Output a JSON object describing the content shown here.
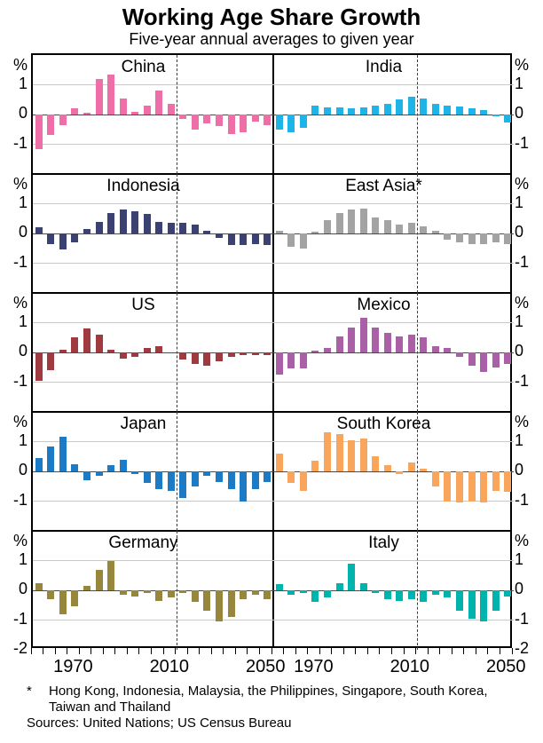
{
  "title": "Working Age Share Growth",
  "subtitle": "Five-year annual averages to given year",
  "footnote": {
    "marker": "*",
    "line1": "Hong Kong, Indonesia, Malaysia, the Philippines, Singapore, South Korea,",
    "line2": "Taiwan and Thailand",
    "sources": "Sources: United Nations; US Census Bureau"
  },
  "chart_data": {
    "type": "bar",
    "unit": "%",
    "title": "Working Age Share Growth",
    "subtitle": "Five-year annual averages to given year",
    "x": [
      1955,
      1960,
      1965,
      1970,
      1975,
      1980,
      1985,
      1990,
      1995,
      2000,
      2005,
      2010,
      2015,
      2020,
      2025,
      2030,
      2035,
      2040,
      2045,
      2050
    ],
    "x_tick_labels": [
      "1970",
      "2010",
      "2050"
    ],
    "x_label_years": [
      1970,
      2010,
      2050
    ],
    "ylim": [
      -2,
      2
    ],
    "y_tick_labels": [
      "%",
      "1",
      "0",
      "-1"
    ],
    "y_bottom_label": "-2",
    "grid": "horizontal gridlines at +1 and -1",
    "projection_divider_year": 2012.5,
    "layout": {
      "rows": 5,
      "cols": 2,
      "legend": "none"
    },
    "panels": [
      {
        "name": "China",
        "color": "#ee6fa8",
        "values": [
          -1.15,
          -0.7,
          -0.35,
          0.2,
          0.05,
          1.2,
          1.35,
          0.55,
          0.1,
          0.3,
          0.8,
          0.35,
          -0.15,
          -0.5,
          -0.3,
          -0.4,
          -0.65,
          -0.6,
          -0.25,
          -0.35
        ]
      },
      {
        "name": "India",
        "color": "#1fb4e8",
        "values": [
          -0.5,
          -0.6,
          -0.45,
          0.3,
          0.25,
          0.25,
          0.2,
          0.25,
          0.3,
          0.35,
          0.5,
          0.6,
          0.55,
          0.35,
          0.3,
          0.28,
          0.22,
          0.15,
          -0.05,
          -0.27
        ]
      },
      {
        "name": "Indonesia",
        "color": "#3b4170",
        "values": [
          0.2,
          -0.35,
          -0.55,
          -0.3,
          0.15,
          0.4,
          0.7,
          0.8,
          0.75,
          0.65,
          0.4,
          0.35,
          0.35,
          0.3,
          0.1,
          -0.15,
          -0.4,
          -0.4,
          -0.35,
          -0.4
        ]
      },
      {
        "name": "East Asia*",
        "color": "#a3a3a3",
        "values": [
          0.1,
          -0.45,
          -0.5,
          0.05,
          0.45,
          0.7,
          0.8,
          0.85,
          0.55,
          0.45,
          0.3,
          0.35,
          0.25,
          0.1,
          -0.2,
          -0.3,
          -0.35,
          -0.35,
          -0.3,
          -0.35
        ]
      },
      {
        "name": "US",
        "color": "#9e3a40",
        "values": [
          -0.95,
          -0.6,
          0.1,
          0.5,
          0.8,
          0.6,
          0.1,
          -0.2,
          -0.15,
          0.15,
          0.2,
          0,
          -0.25,
          -0.4,
          -0.45,
          -0.3,
          -0.15,
          -0.1,
          -0.1,
          -0.1
        ]
      },
      {
        "name": "Mexico",
        "color": "#aa60a7",
        "values": [
          -0.75,
          -0.55,
          -0.55,
          0.05,
          0.15,
          0.55,
          0.85,
          1.15,
          0.85,
          0.65,
          0.55,
          0.6,
          0.5,
          0.2,
          0.15,
          -0.15,
          -0.45,
          -0.65,
          -0.5,
          -0.4
        ]
      },
      {
        "name": "Japan",
        "color": "#1d7ac5",
        "values": [
          0.45,
          0.85,
          1.15,
          0.25,
          -0.3,
          -0.15,
          0.2,
          0.4,
          -0.1,
          -0.4,
          -0.6,
          -0.65,
          -0.9,
          -0.5,
          -0.15,
          -0.35,
          -0.6,
          -1.0,
          -0.6,
          -0.35
        ]
      },
      {
        "name": "South Korea",
        "color": "#f9a65c",
        "values": [
          0.6,
          -0.4,
          -0.65,
          0.35,
          1.3,
          1.25,
          1.05,
          1.1,
          0.5,
          0.2,
          -0.1,
          0.3,
          0.1,
          -0.5,
          -1.0,
          -1.05,
          -1.0,
          -1.05,
          -0.65,
          -0.7
        ]
      },
      {
        "name": "Germany",
        "color": "#97873c",
        "values": [
          0.25,
          -0.3,
          -0.8,
          -0.55,
          0.15,
          0.7,
          1.0,
          -0.15,
          -0.2,
          -0.1,
          -0.35,
          -0.25,
          -0.1,
          -0.4,
          -0.7,
          -1.05,
          -0.9,
          -0.3,
          -0.15,
          -0.3
        ]
      },
      {
        "name": "Italy",
        "color": "#00b3ad",
        "values": [
          0.2,
          -0.15,
          -0.1,
          -0.4,
          -0.25,
          0.25,
          0.9,
          0.25,
          -0.1,
          -0.3,
          -0.35,
          -0.3,
          -0.4,
          -0.15,
          -0.25,
          -0.7,
          -0.95,
          -1.05,
          -0.7,
          -0.2
        ]
      }
    ]
  }
}
